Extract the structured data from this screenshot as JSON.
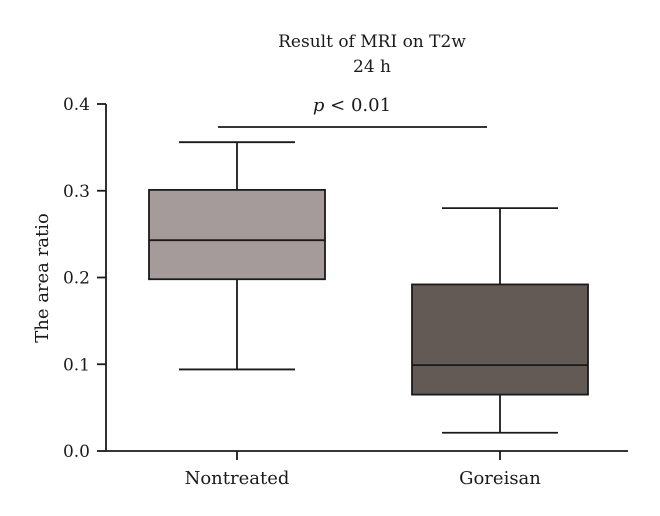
{
  "chart_data": {
    "type": "box",
    "title_line1": "Result of MRI on T2w",
    "title_line2": "24 h",
    "ylabel": "The area ratio",
    "xlabel": "",
    "ylim": [
      0.0,
      0.4
    ],
    "yticks": [
      "0.0",
      "0.1",
      "0.2",
      "0.3",
      "0.4"
    ],
    "categories": [
      "Nontreated",
      "Goreisan"
    ],
    "boxes": [
      {
        "label": "Nontreated",
        "min": 0.094,
        "q1": 0.198,
        "median": 0.243,
        "q3": 0.301,
        "max": 0.356,
        "color": "#a69b9b"
      },
      {
        "label": "Goreisan",
        "min": 0.021,
        "q1": 0.065,
        "median": 0.099,
        "q3": 0.192,
        "max": 0.28,
        "color": "#645a55"
      }
    ],
    "significance": {
      "p_symbol": "p",
      "text": " < 0.01",
      "between": [
        "Nontreated",
        "Goreisan"
      ]
    },
    "grid": false,
    "legend": "none"
  }
}
